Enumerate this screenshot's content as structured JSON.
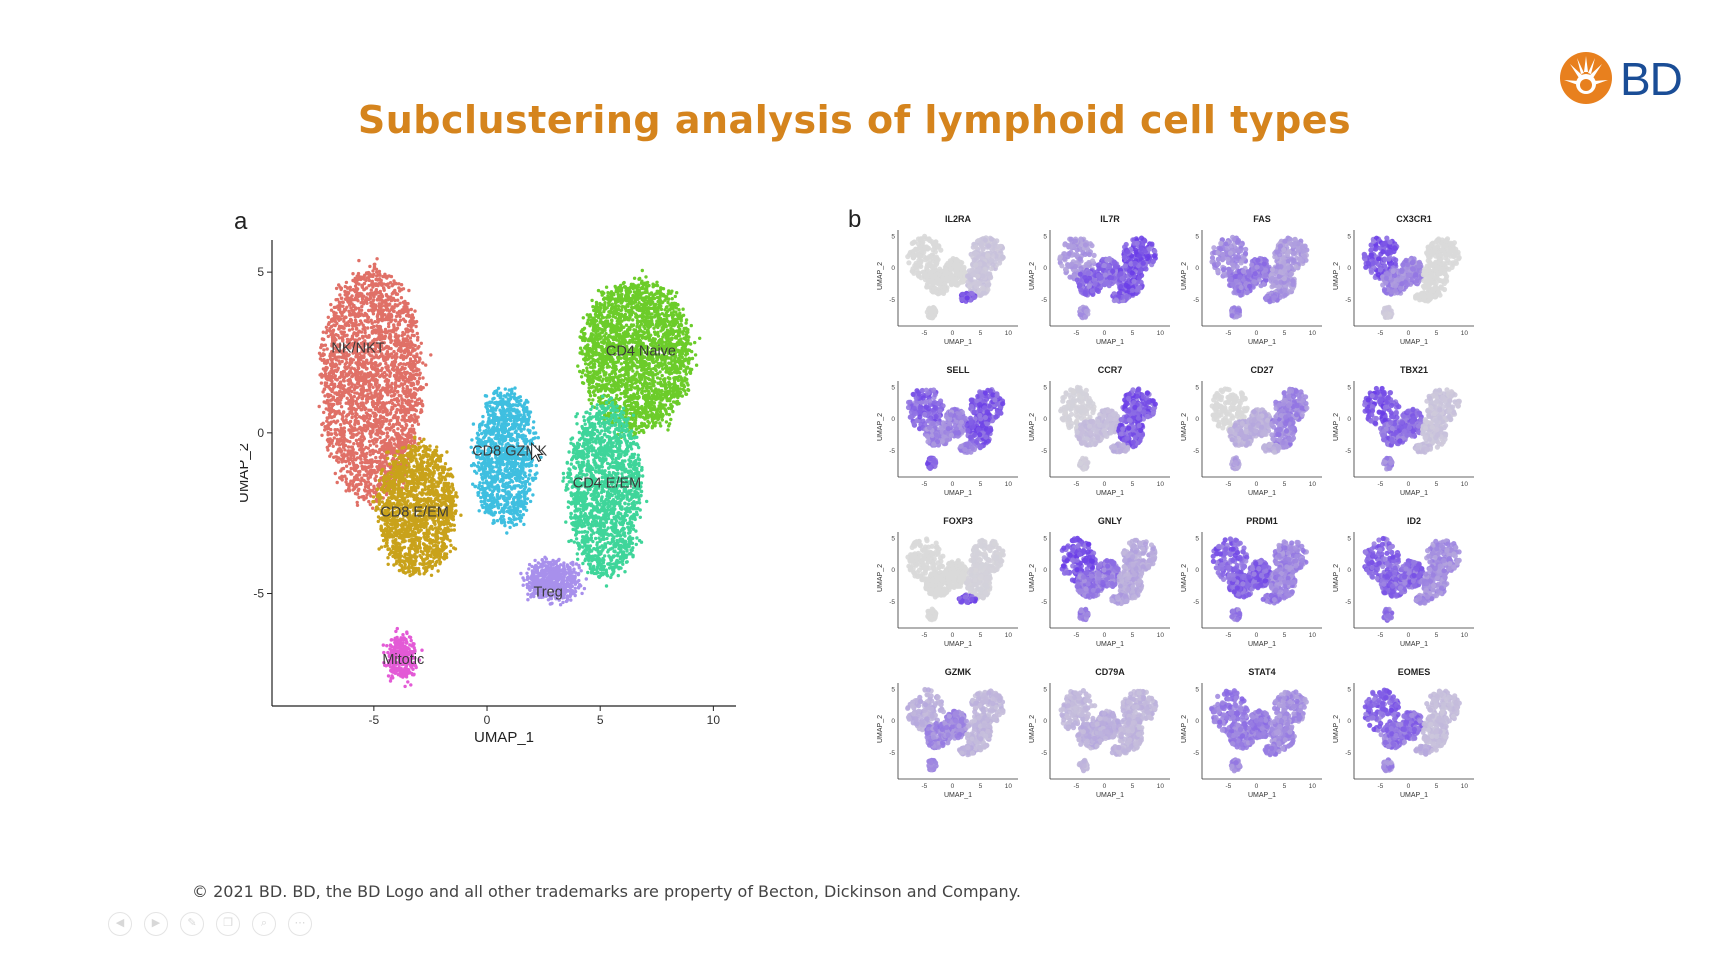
{
  "slide": {
    "title": "Subclustering analysis of lymphoid cell types",
    "logo_text": "BD",
    "brand_colors": {
      "logo_orange": "#e8801e",
      "logo_blue": "#1a4d96",
      "title_orange": "#d5841d"
    },
    "footer": "© 2021 BD. BD, the BD Logo and all other trademarks are property of Becton, Dickinson and Company."
  },
  "panel_a": {
    "letter": "a",
    "cursor": "arrow-cursor-icon"
  },
  "panel_b": {
    "letter": "b"
  },
  "player_controls": [
    "previous-icon",
    "next-icon",
    "pen-icon",
    "copy-icon",
    "zoom-icon",
    "more-icon"
  ],
  "chart_data": [
    {
      "type": "scatter",
      "title": "",
      "xlabel": "UMAP_1",
      "ylabel": "UMAP_2",
      "xlim": [
        -9.5,
        11
      ],
      "ylim": [
        -8.5,
        6
      ],
      "xticks": [
        -5,
        0,
        5,
        10
      ],
      "yticks": [
        -5,
        0,
        5
      ],
      "grid": false,
      "clusters": [
        {
          "name": "NK/NKT",
          "color": "#e07067",
          "center": [
            -5.1,
            1.5
          ],
          "label_pos": [
            -5.7,
            2.5
          ]
        },
        {
          "name": "CD8 E/EM",
          "color": "#c9a21b",
          "center": [
            -3.1,
            -2.4
          ],
          "label_pos": [
            -3.2,
            -2.6
          ]
        },
        {
          "name": "CD8 GZMK",
          "color": "#3fbfe0",
          "center": [
            0.8,
            -0.8
          ],
          "label_pos": [
            1.0,
            -0.7
          ]
        },
        {
          "name": "CD4 Naive",
          "color": "#6ccc2a",
          "center": [
            6.6,
            2.4
          ],
          "label_pos": [
            6.8,
            2.4
          ]
        },
        {
          "name": "CD4 E/EM",
          "color": "#3fd59a",
          "center": [
            5.2,
            -1.8
          ],
          "label_pos": [
            5.3,
            -1.7
          ]
        },
        {
          "name": "Treg",
          "color": "#a890ec",
          "center": [
            2.9,
            -4.6
          ],
          "label_pos": [
            2.7,
            -5.1
          ]
        },
        {
          "name": "Mitotic",
          "color": "#e35ad6",
          "center": [
            -3.8,
            -7.0
          ],
          "label_pos": [
            -3.7,
            -7.2
          ]
        }
      ]
    },
    {
      "type": "scatter",
      "layout": "4x4 small multiples of UMAP feature plots",
      "xlabel": "UMAP_1",
      "ylabel": "UMAP_2",
      "xticks": [
        -5,
        0,
        5,
        10
      ],
      "yticks": [
        -5,
        0,
        5
      ],
      "colors": {
        "low": "#d9d9d9",
        "high": "#6a3de8"
      },
      "panels": [
        {
          "gene": "IL2RA",
          "expression": {
            "global": 0.05,
            "nk": 0.0,
            "cd8": 0.0,
            "cd4": 0.15,
            "treg": 0.95,
            "mitotic": 0.0
          }
        },
        {
          "gene": "IL7R",
          "expression": {
            "global": 0.65,
            "nk": 0.45,
            "cd8": 0.8,
            "cd4": 0.95,
            "treg": 0.85,
            "mitotic": 0.5
          }
        },
        {
          "gene": "FAS",
          "expression": {
            "global": 0.55,
            "nk": 0.55,
            "cd8": 0.7,
            "cd4": 0.45,
            "treg": 0.6,
            "mitotic": 0.6
          }
        },
        {
          "gene": "CX3CR1",
          "expression": {
            "global": 0.2,
            "nk": 0.95,
            "cd8": 0.6,
            "cd4": 0.0,
            "treg": 0.0,
            "mitotic": 0.1
          }
        },
        {
          "gene": "SELL",
          "expression": {
            "global": 0.75,
            "nk": 0.85,
            "cd8": 0.6,
            "cd4": 0.9,
            "treg": 0.6,
            "mitotic": 0.9
          }
        },
        {
          "gene": "CCR7",
          "expression": {
            "global": 0.25,
            "nk": 0.05,
            "cd8": 0.2,
            "cd4": 0.95,
            "treg": 0.3,
            "mitotic": 0.1
          }
        },
        {
          "gene": "CD27",
          "expression": {
            "global": 0.2,
            "nk": 0.0,
            "cd8": 0.3,
            "cd4": 0.6,
            "treg": 0.3,
            "mitotic": 0.4
          }
        },
        {
          "gene": "TBX21",
          "expression": {
            "global": 0.35,
            "nk": 0.95,
            "cd8": 0.8,
            "cd4": 0.15,
            "treg": 0.2,
            "mitotic": 0.6
          }
        },
        {
          "gene": "FOXP3",
          "expression": {
            "global": 0.02,
            "nk": 0.0,
            "cd8": 0.0,
            "cd4": 0.05,
            "treg": 0.95,
            "mitotic": 0.0
          }
        },
        {
          "gene": "GNLY",
          "expression": {
            "global": 0.4,
            "nk": 1.0,
            "cd8": 0.7,
            "cd4": 0.35,
            "treg": 0.4,
            "mitotic": 0.7
          }
        },
        {
          "gene": "PRDM1",
          "expression": {
            "global": 0.6,
            "nk": 0.85,
            "cd8": 0.85,
            "cd4": 0.6,
            "treg": 0.7,
            "mitotic": 0.7
          }
        },
        {
          "gene": "ID2",
          "expression": {
            "global": 0.6,
            "nk": 0.85,
            "cd8": 0.8,
            "cd4": 0.55,
            "treg": 0.6,
            "mitotic": 0.7
          }
        },
        {
          "gene": "GZMK",
          "expression": {
            "global": 0.3,
            "nk": 0.3,
            "cd8": 0.6,
            "cd4": 0.25,
            "treg": 0.3,
            "mitotic": 0.6
          }
        },
        {
          "gene": "CD79A",
          "expression": {
            "global": 0.25,
            "nk": 0.25,
            "cd8": 0.3,
            "cd4": 0.25,
            "treg": 0.25,
            "mitotic": 0.25
          }
        },
        {
          "gene": "STAT4",
          "expression": {
            "global": 0.6,
            "nk": 0.7,
            "cd8": 0.65,
            "cd4": 0.55,
            "treg": 0.6,
            "mitotic": 0.6
          }
        },
        {
          "gene": "EOMES",
          "expression": {
            "global": 0.45,
            "nk": 0.85,
            "cd8": 0.75,
            "cd4": 0.2,
            "treg": 0.3,
            "mitotic": 0.6
          }
        }
      ]
    }
  ]
}
